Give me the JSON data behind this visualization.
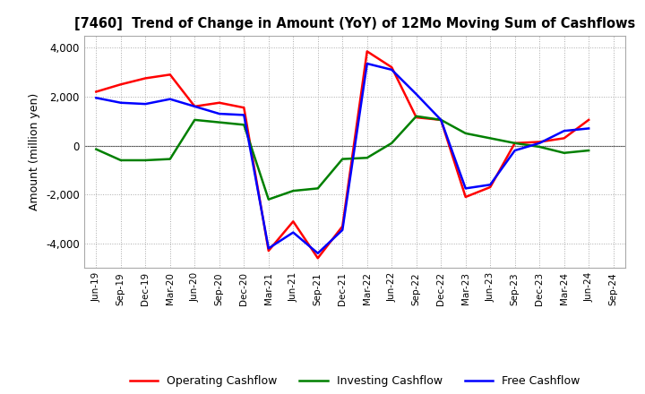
{
  "title": "[7460]  Trend of Change in Amount (YoY) of 12Mo Moving Sum of Cashflows",
  "ylabel": "Amount (million yen)",
  "x_labels": [
    "Jun-19",
    "Sep-19",
    "Dec-19",
    "Mar-20",
    "Jun-20",
    "Sep-20",
    "Dec-20",
    "Mar-21",
    "Jun-21",
    "Sep-21",
    "Dec-21",
    "Mar-22",
    "Jun-22",
    "Sep-22",
    "Dec-22",
    "Mar-23",
    "Jun-23",
    "Sep-23",
    "Dec-23",
    "Mar-24",
    "Jun-24",
    "Sep-24"
  ],
  "operating": [
    2200,
    2500,
    2750,
    2900,
    1600,
    1750,
    1550,
    -4300,
    -3100,
    -4600,
    -3300,
    3850,
    3200,
    1150,
    1050,
    -2100,
    -1700,
    100,
    150,
    300,
    1050,
    null
  ],
  "investing": [
    -150,
    -600,
    -600,
    -550,
    1050,
    950,
    850,
    -2200,
    -1850,
    -1750,
    -550,
    -500,
    100,
    1200,
    1050,
    500,
    300,
    100,
    -50,
    -300,
    -200,
    null
  ],
  "free": [
    1950,
    1750,
    1700,
    1900,
    1600,
    1300,
    1250,
    -4200,
    -3550,
    -4400,
    -3450,
    3350,
    3100,
    2100,
    1050,
    -1750,
    -1600,
    -200,
    100,
    600,
    700,
    null
  ],
  "ylim": [
    -5000,
    4500
  ],
  "yticks": [
    -4000,
    -2000,
    0,
    2000,
    4000
  ],
  "operating_color": "#ff0000",
  "investing_color": "#008000",
  "free_color": "#0000ff",
  "line_width": 1.8,
  "bg_color": "#ffffff",
  "grid_color": "#aaaaaa"
}
